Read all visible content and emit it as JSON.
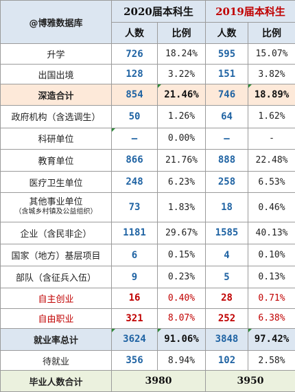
{
  "header": {
    "brand": "@博雅数据库",
    "year2020": "2020届本科生",
    "year2019": "2019届本科生",
    "col_count": "人数",
    "col_ratio": "比例"
  },
  "rows": [
    {
      "label": "升学",
      "c2020": "726",
      "p2020": "18.24%",
      "c2019": "595",
      "p2019": "15.07%"
    },
    {
      "label": "出国出境",
      "c2020": "128",
      "p2020": "3.22%",
      "c2019": "151",
      "p2019": "3.82%"
    },
    {
      "label": "深造合计",
      "c2020": "854",
      "p2020": "21.46%",
      "c2019": "746",
      "p2019": "18.89%"
    },
    {
      "label": "政府机构（含选调生）",
      "c2020": "50",
      "p2020": "1.26%",
      "c2019": "64",
      "p2019": "1.62%"
    },
    {
      "label": "科研单位",
      "c2020": "—",
      "p2020": "0.00%",
      "c2019": "—",
      "p2019": "-"
    },
    {
      "label": "教育单位",
      "c2020": "866",
      "p2020": "21.76%",
      "c2019": "888",
      "p2019": "22.48%"
    },
    {
      "label": "医疗卫生单位",
      "c2020": "248",
      "p2020": "6.23%",
      "c2019": "258",
      "p2019": "6.53%"
    },
    {
      "label": "其他事业单位",
      "label2": "（含城乡村镇及公益组织）",
      "c2020": "73",
      "p2020": "1.83%",
      "c2019": "18",
      "p2019": "0.46%"
    },
    {
      "label": "企业（含民非企）",
      "c2020": "1181",
      "p2020": "29.67%",
      "c2019": "1585",
      "p2019": "40.13%"
    },
    {
      "label": "国家（地方）基层项目",
      "c2020": "6",
      "p2020": "0.15%",
      "c2019": "4",
      "p2019": "0.10%"
    },
    {
      "label": "部队（含征兵入伍）",
      "c2020": "9",
      "p2020": "0.23%",
      "c2019": "5",
      "p2019": "0.13%"
    },
    {
      "label": "自主创业",
      "c2020": "16",
      "p2020": "0.40%",
      "c2019": "28",
      "p2019": "0.71%"
    },
    {
      "label": "自由职业",
      "c2020": "321",
      "p2020": "8.07%",
      "c2019": "252",
      "p2019": "6.38%"
    },
    {
      "label": "就业率总计",
      "c2020": "3624",
      "p2020": "91.06%",
      "c2019": "3848",
      "p2019": "97.42%"
    },
    {
      "label": "待就业",
      "c2020": "356",
      "p2020": "8.94%",
      "c2019": "102",
      "p2019": "2.58%"
    }
  ],
  "total": {
    "label": "毕业人数合计",
    "v2020": "3980",
    "v2019": "3950"
  },
  "colors": {
    "header_bg": "#dce6f1",
    "highlight_orange": "#fde9d9",
    "total_green": "#ebf1de",
    "number_blue": "#1f63a3",
    "year2019_red": "#c00000"
  }
}
